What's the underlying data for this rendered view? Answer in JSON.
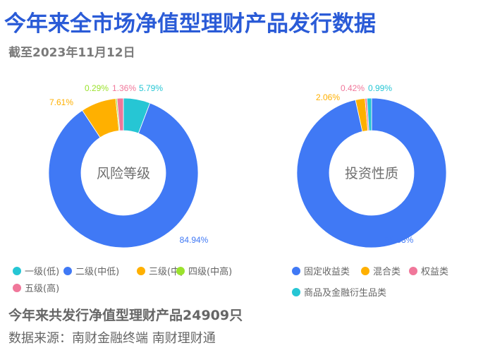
{
  "header": {
    "title": "今年来全市场净值型理财产品发行数据",
    "subtitle": "截至2023年11月12日"
  },
  "footer": {
    "summary": "今年来共发行净值型理财产品24909只",
    "source": "数据来源：南财金融终端 南财理财通"
  },
  "chart_data": [
    {
      "type": "pie",
      "title": "风险等级",
      "categories": [
        "一级(低)",
        "二级(中低)",
        "三级(中)",
        "四级(中高)",
        "五级(高)"
      ],
      "values": [
        5.79,
        84.94,
        7.61,
        0.29,
        1.36
      ],
      "labels": [
        "5.79%",
        "84.94%",
        "7.61%",
        "0.29%",
        "1.36%"
      ],
      "colors": [
        "#26c6d4",
        "#4079f5",
        "#ffb000",
        "#9be22d",
        "#f0779a"
      ],
      "legend_position": "bottom",
      "donut": true
    },
    {
      "type": "pie",
      "title": "投资性质",
      "categories": [
        "固定收益类",
        "混合类",
        "权益类",
        "商品及金融衍生品类"
      ],
      "values": [
        96.53,
        2.06,
        0.42,
        0.99
      ],
      "labels": [
        "96.53%",
        "2.06%",
        "0.42%",
        "0.99%"
      ],
      "colors": [
        "#4079f5",
        "#ffb000",
        "#f0779a",
        "#26c6d4"
      ],
      "legend_position": "bottom",
      "donut": true
    }
  ]
}
